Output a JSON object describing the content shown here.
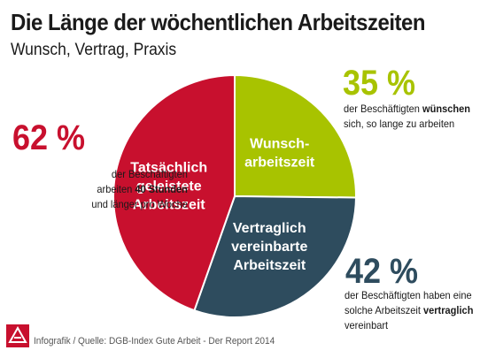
{
  "header": {
    "title": "Die Länge der wöchentlichen Arbeitszeiten",
    "subtitle": "Wunsch, Vertrag, Praxis"
  },
  "callouts": {
    "praxis": {
      "pct": "62 %",
      "line1": "der Beschäftigten",
      "line2_pre": "arbeiten ",
      "line2_bold": "40 Stunden",
      "line3": "und länger pro Woche"
    },
    "wunsch": {
      "pct": "35 %",
      "line1_pre": "der Beschäftigten ",
      "line1_bold": "wünschen",
      "line2": "sich, so lange zu arbeiten"
    },
    "vertrag": {
      "pct": "42 %",
      "line1": "der Beschäftigten haben eine",
      "line2_pre": "solche Arbeitszeit ",
      "line2_bold": "vertraglich",
      "line3": "vereinbart"
    }
  },
  "footer": {
    "source": "Infografik / Quelle: DGB-Index Gute Arbeit - Der Report 2014"
  },
  "colors": {
    "praxis": "#c8102e",
    "wunsch": "#a8c300",
    "vertrag": "#2e4c5e",
    "logo": "#c8102e"
  },
  "chart_data": {
    "type": "pie",
    "title": "Die Länge der wöchentlichen Arbeitszeiten",
    "subtitle": "Wunsch, Vertrag, Praxis",
    "slices": [
      {
        "name": "Wunsch-arbeitszeit",
        "label_lines": [
          "Wunsch-",
          "arbeitszeit"
        ],
        "value": 35,
        "color": "#a8c300"
      },
      {
        "name": "Vertraglich vereinbarte Arbeitszeit",
        "label_lines": [
          "Vertraglich",
          "vereinbarte",
          "Arbeitszeit"
        ],
        "value": 42,
        "color": "#2e4c5e"
      },
      {
        "name": "Tatsächlich geleistete Arbeitszeit",
        "label_lines": [
          "Tatsächlich",
          "geleistete",
          "Arbeitszeit"
        ],
        "value": 62,
        "color": "#c8102e"
      }
    ]
  }
}
